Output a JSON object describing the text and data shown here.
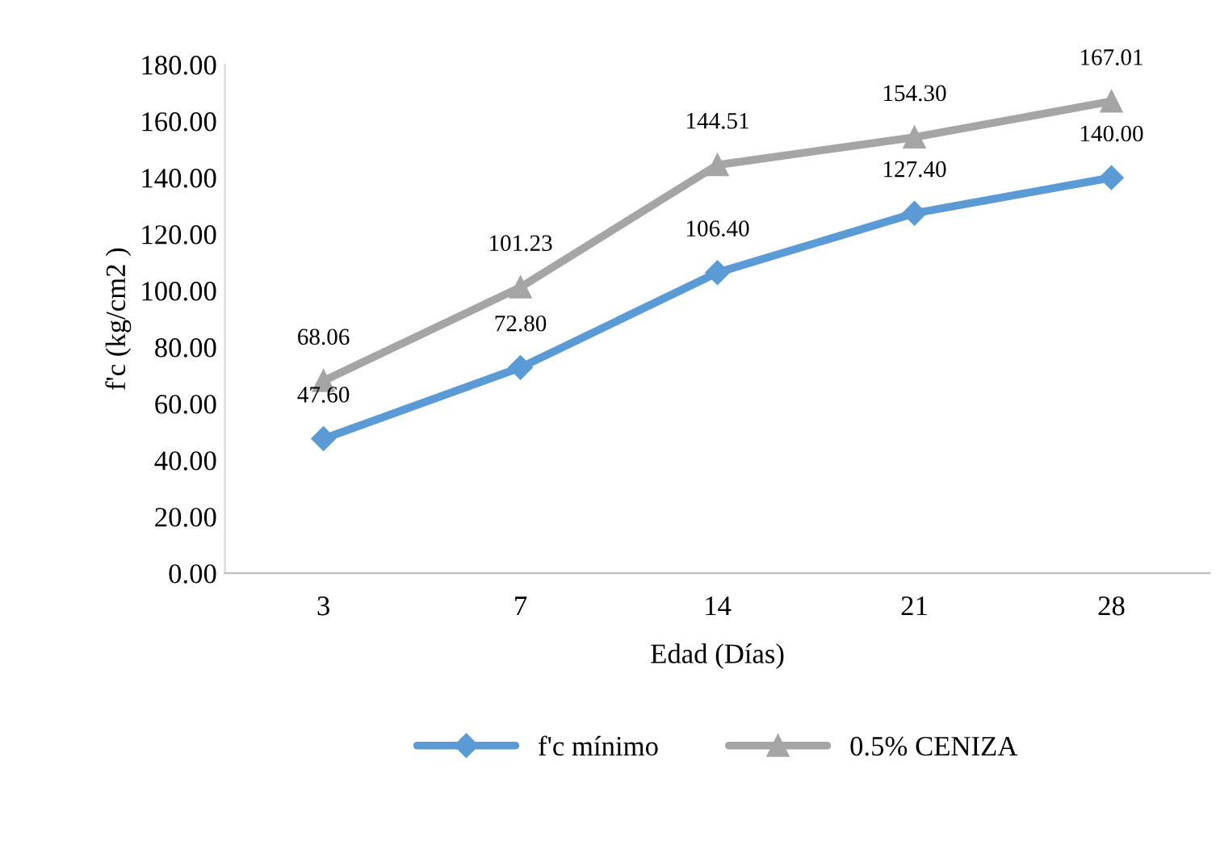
{
  "chart_data": {
    "type": "line",
    "xlabel": "Edad (Días)",
    "ylabel": "f'c (kg/cm2 )",
    "categories": [
      "3",
      "7",
      "14",
      "21",
      "28"
    ],
    "ylim": [
      0,
      180
    ],
    "yticks": [
      {
        "value": 0,
        "label": "0.00"
      },
      {
        "value": 20,
        "label": "20.00"
      },
      {
        "value": 40,
        "label": "40.00"
      },
      {
        "value": 60,
        "label": "60.00"
      },
      {
        "value": 80,
        "label": "80.00"
      },
      {
        "value": 100,
        "label": "100.00"
      },
      {
        "value": 120,
        "label": "120.00"
      },
      {
        "value": 140,
        "label": "140.00"
      },
      {
        "value": 160,
        "label": "160.00"
      },
      {
        "value": 180,
        "label": "180.00"
      }
    ],
    "series": [
      {
        "name": "f'c mínimo",
        "color": "#5b9bd5",
        "marker": "diamond",
        "values": [
          47.6,
          72.8,
          106.4,
          127.4,
          140.0
        ],
        "value_labels": [
          "47.60",
          "72.80",
          "106.40",
          "127.40",
          "140.00"
        ]
      },
      {
        "name": "0.5% CENIZA",
        "color": "#a5a5a5",
        "marker": "triangle",
        "values": [
          68.06,
          101.23,
          144.51,
          154.3,
          167.01
        ],
        "value_labels": [
          "68.06",
          "101.23",
          "144.51",
          "154.30",
          "167.01"
        ]
      }
    ],
    "grid": false,
    "legend": "bottom",
    "line_style": "solid"
  }
}
